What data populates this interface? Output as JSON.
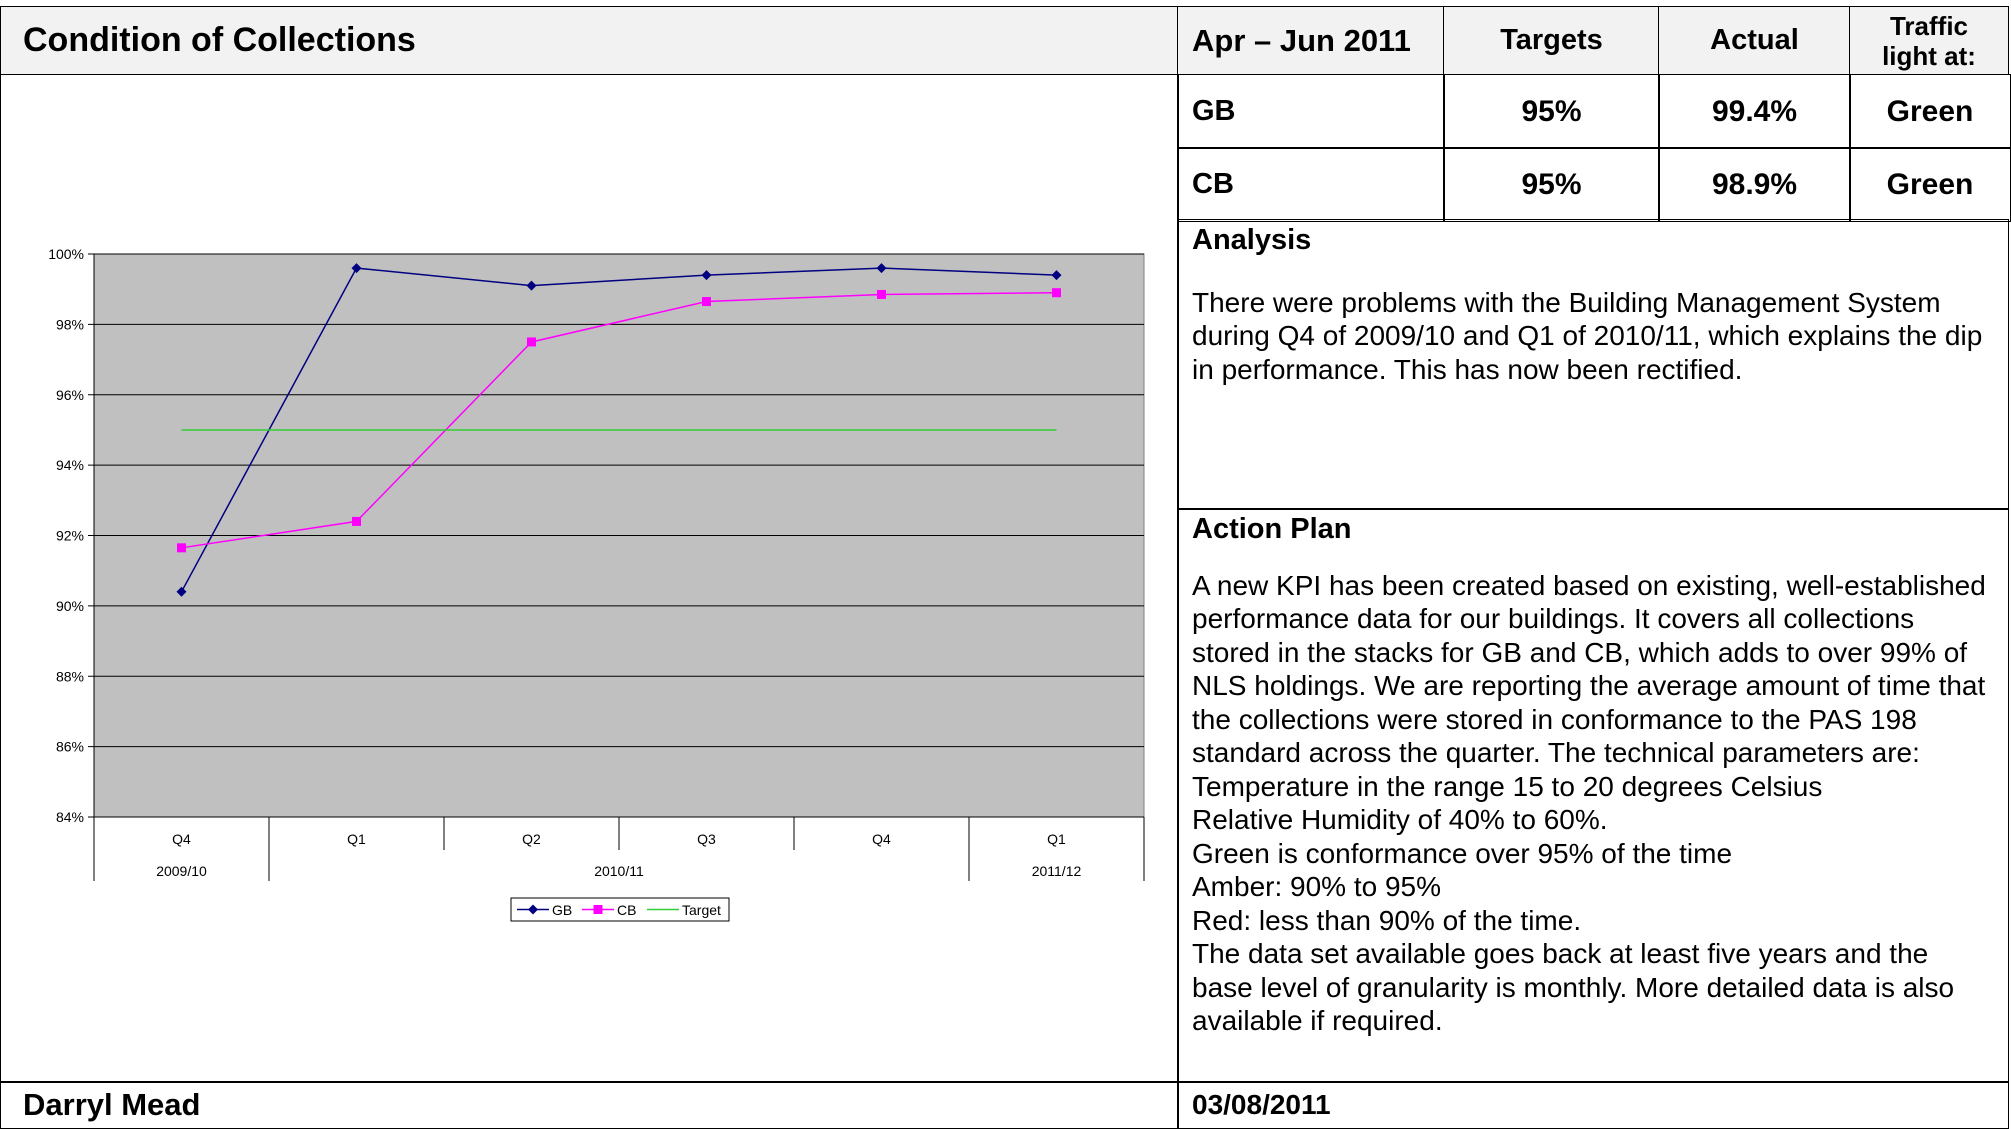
{
  "header": {
    "title": "Condition of Collections",
    "columns": [
      "Apr – Jun 2011",
      "Targets",
      "Actual",
      "Traffic light at:"
    ]
  },
  "table": {
    "rows": [
      [
        "GB",
        "95%",
        "99.4%",
        "Green"
      ],
      [
        "CB",
        "95%",
        "98.9%",
        "Green"
      ]
    ]
  },
  "analysis": {
    "title": "Analysis",
    "body": "There were problems with the Building Management System during Q4 of 2009/10 and Q1 of 2010/11, which explains the dip in performance. This has now been rectified."
  },
  "action_plan": {
    "title": "Action Plan",
    "body": [
      "A new KPI has been created based on existing, well-established performance data for our buildings.  It covers all collections stored in the stacks for GB and CB, which adds to over 99% of NLS holdings.  We are reporting the average amount of time that the collections were stored in conformance to the PAS 198 standard across the quarter.  The technical parameters are:",
      "Temperature in the range 15 to 20 degrees Celsius",
      "Relative Humidity of 40% to 60%.",
      "Green is conformance over 95% of the time",
      "Amber: 90% to 95%",
      "Red: less than 90% of the time.",
      "The data set available goes back at least five years and the base level of granularity is monthly.  More detailed data is also available if required."
    ]
  },
  "footer": {
    "author": "Darryl Mead",
    "date": "03/08/2011"
  },
  "chart_data": {
    "type": "line",
    "categories": [
      "Q4",
      "Q1",
      "Q2",
      "Q3",
      "Q4",
      "Q1"
    ],
    "groups": [
      "2009/10",
      "2010/11",
      "2011/12"
    ],
    "group_sizes": [
      1,
      4,
      1
    ],
    "series": [
      {
        "name": "GB",
        "color": "#000080",
        "marker": "diamond",
        "values": [
          90.4,
          99.6,
          99.1,
          99.4,
          99.6,
          99.4
        ]
      },
      {
        "name": "CB",
        "color": "#ff00ff",
        "marker": "square",
        "values": [
          91.65,
          92.4,
          97.5,
          98.65,
          98.85,
          98.9
        ]
      },
      {
        "name": "Target",
        "color": "#33cc33",
        "marker": "none",
        "values": [
          95,
          95,
          95,
          95,
          95,
          95
        ]
      }
    ],
    "ylim": [
      84,
      100
    ],
    "yticks": [
      {
        "value": 84,
        "label": "84%"
      },
      {
        "value": 86,
        "label": "86%"
      },
      {
        "value": 88,
        "label": "88%"
      },
      {
        "value": 90,
        "label": "90%"
      },
      {
        "value": 92,
        "label": "92%"
      },
      {
        "value": 94,
        "label": "94%"
      },
      {
        "value": 96,
        "label": "96%"
      },
      {
        "value": 98,
        "label": "98%"
      },
      {
        "value": 100,
        "label": "100%"
      }
    ],
    "grid": true,
    "plot_background": "#c0c0c0",
    "legend": "bottom"
  }
}
